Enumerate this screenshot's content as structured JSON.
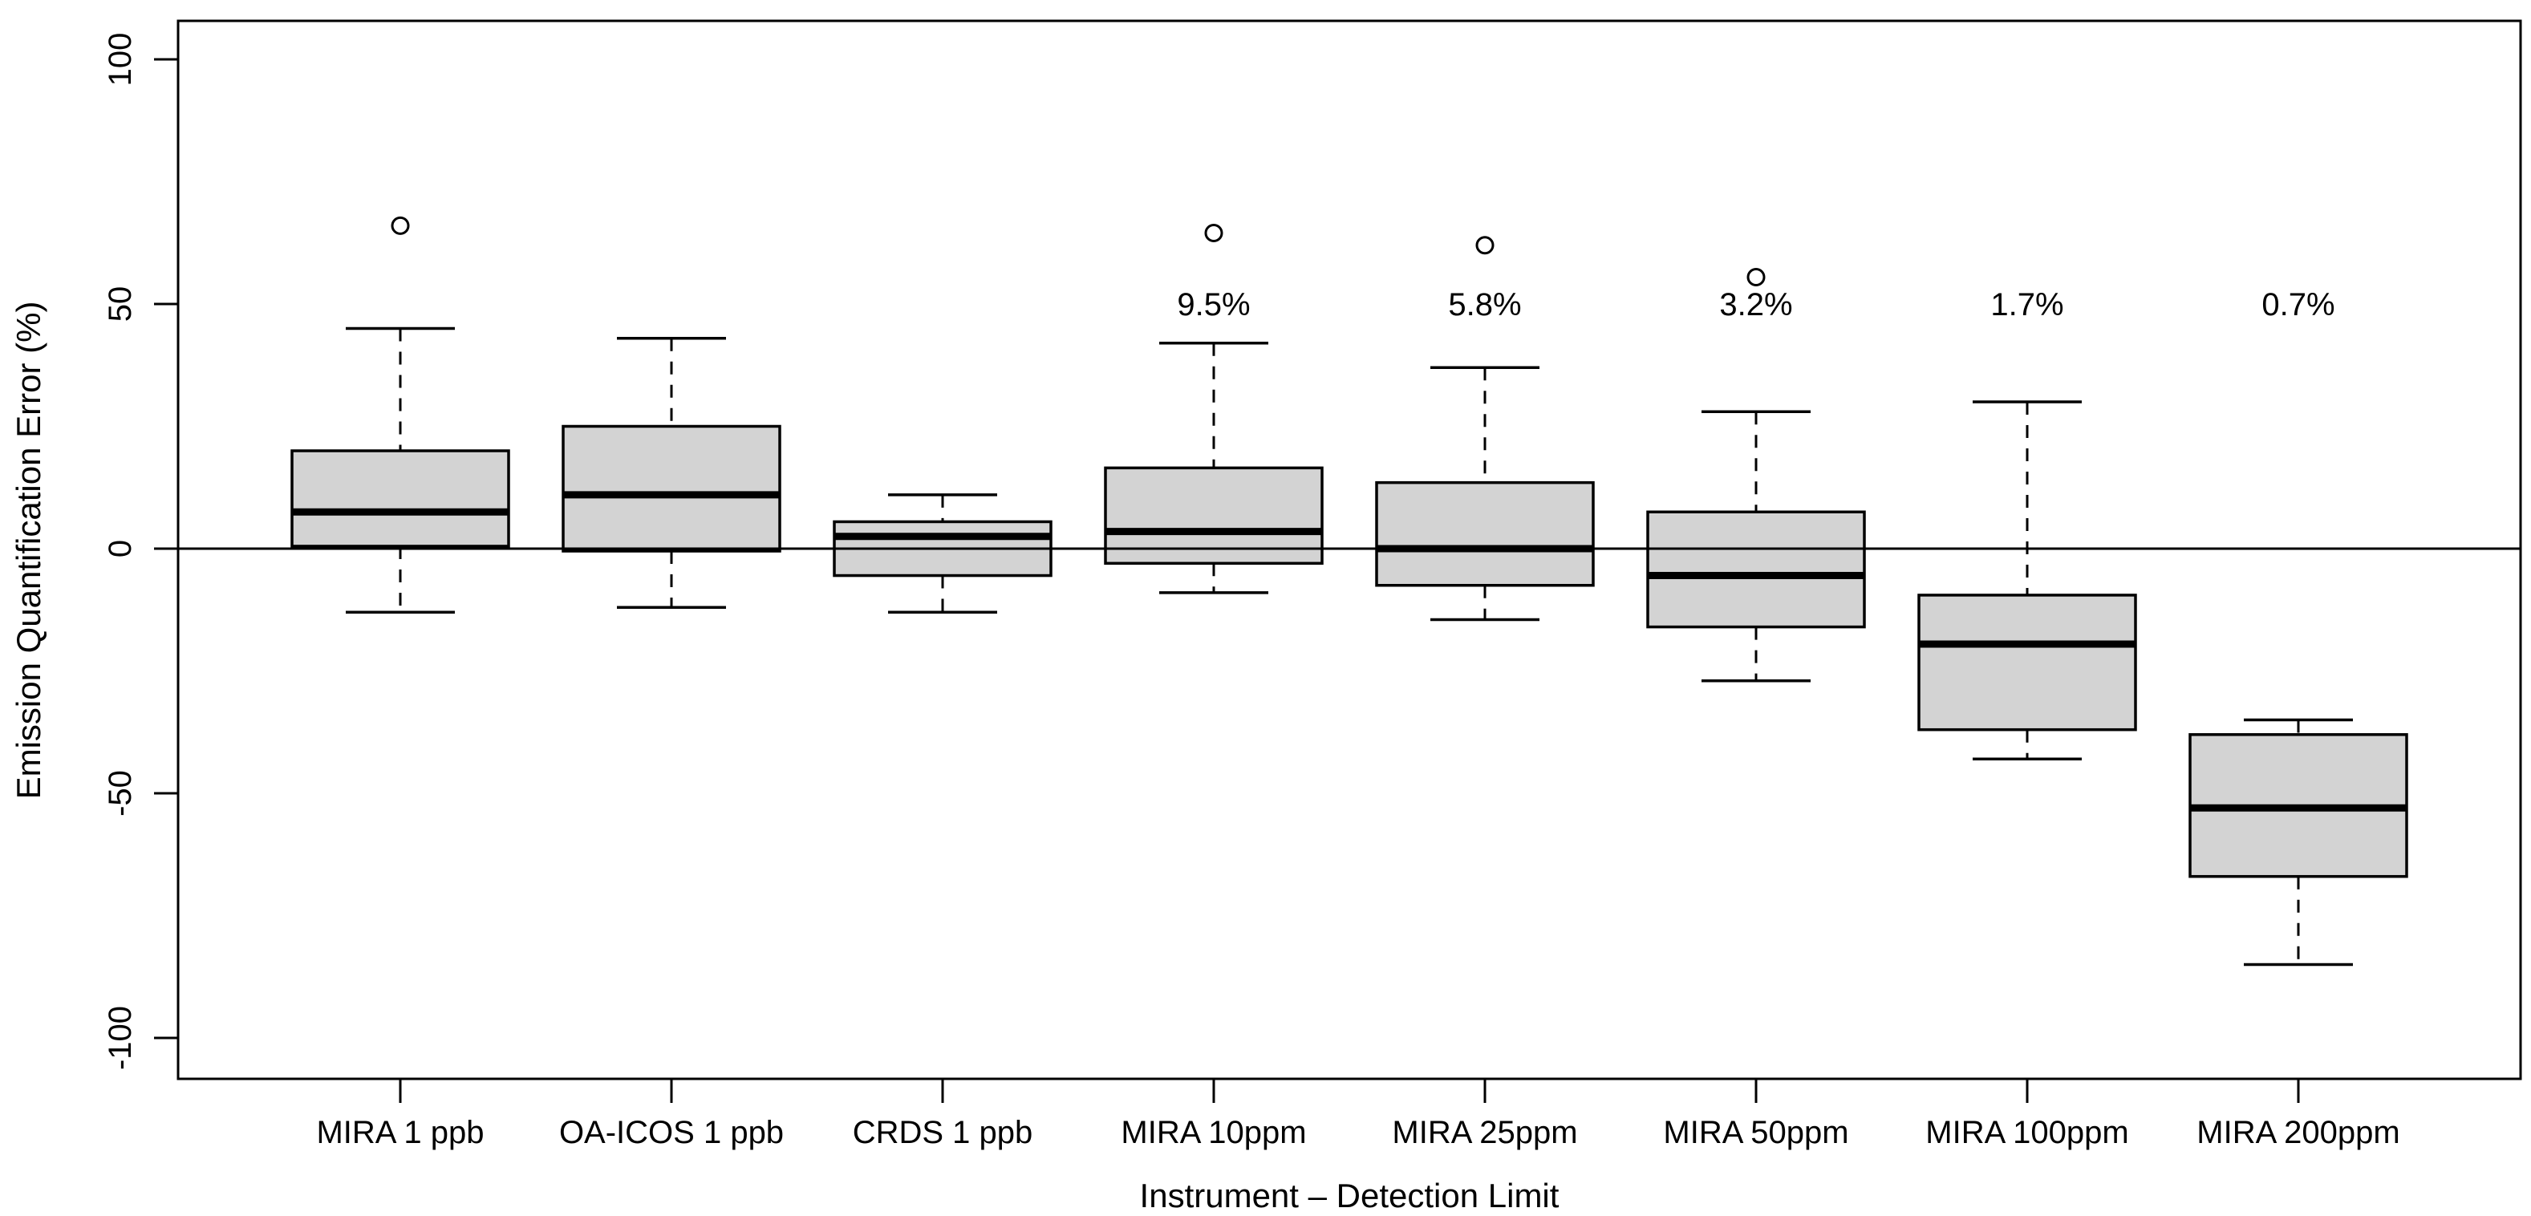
{
  "figure": {
    "background": "#ffffff",
    "text_color": "#000000"
  },
  "chart_data": {
    "type": "boxplot",
    "title": "",
    "xlabel": "Instrument – Detection Limit",
    "ylabel": "Emission Quantification Error (%)",
    "ylim": [
      -104,
      104
    ],
    "yticks": [
      100,
      50,
      0,
      -50,
      -100
    ],
    "ytick_labels": [
      "100",
      "50",
      "0",
      "-50",
      "-100"
    ],
    "grid": false,
    "legend": null,
    "reference_line_y": 0,
    "annotation_y": 50,
    "box_fill": "#d3d3d3",
    "box_stroke": "#000000",
    "median_color": "#000000",
    "whisker_style": "dashed",
    "outlier_marker": "open-circle",
    "categories": [
      "MIRA 1 ppb",
      "OA-ICOS 1 ppb",
      "CRDS 1 ppb",
      "MIRA 10ppm",
      "MIRA 25ppm",
      "MIRA 50ppm",
      "MIRA 100ppm",
      "MIRA 200ppm"
    ],
    "boxes": [
      {
        "label": "MIRA 1 ppb",
        "whisker_low": -13,
        "q1": 0.5,
        "median": 7.5,
        "q3": 20,
        "whisker_high": 45,
        "outliers": [
          66
        ],
        "annotation": ""
      },
      {
        "label": "OA-ICOS 1 ppb",
        "whisker_low": -12,
        "q1": -0.5,
        "median": 11,
        "q3": 25,
        "whisker_high": 43,
        "outliers": [],
        "annotation": ""
      },
      {
        "label": "CRDS 1 ppb",
        "whisker_low": -13,
        "q1": -5.5,
        "median": 2.5,
        "q3": 5.5,
        "whisker_high": 11,
        "outliers": [],
        "annotation": ""
      },
      {
        "label": "MIRA 10ppm",
        "whisker_low": -9,
        "q1": -3,
        "median": 3.5,
        "q3": 16.5,
        "whisker_high": 42,
        "outliers": [
          64.5
        ],
        "annotation": "9.5%"
      },
      {
        "label": "MIRA 25ppm",
        "whisker_low": -14.5,
        "q1": -7.5,
        "median": 0,
        "q3": 13.5,
        "whisker_high": 37,
        "outliers": [
          62
        ],
        "annotation": "5.8%"
      },
      {
        "label": "MIRA 50ppm",
        "whisker_low": -27,
        "q1": -16,
        "median": -5.5,
        "q3": 7.5,
        "whisker_high": 28,
        "outliers": [
          55.5
        ],
        "annotation": "3.2%"
      },
      {
        "label": "MIRA 100ppm",
        "whisker_low": -43,
        "q1": -37,
        "median": -19.5,
        "q3": -9.5,
        "whisker_high": 30,
        "outliers": [],
        "annotation": "1.7%"
      },
      {
        "label": "MIRA 200ppm",
        "whisker_low": -85,
        "q1": -67,
        "median": -53,
        "q3": -38,
        "whisker_high": -35,
        "outliers": [],
        "annotation": "0.7%"
      }
    ]
  }
}
